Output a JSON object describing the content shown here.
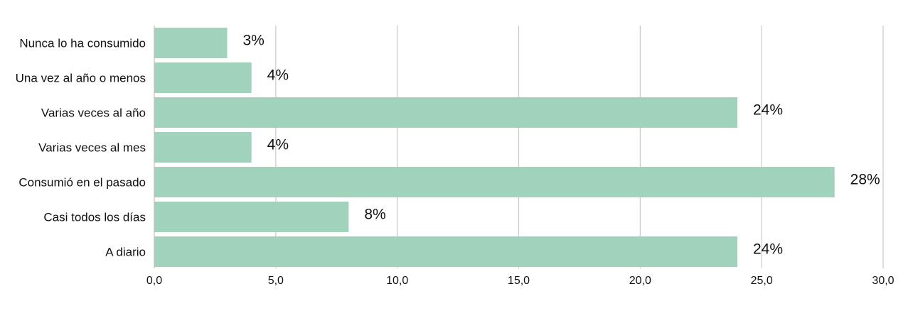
{
  "chart_data": {
    "type": "bar",
    "orientation": "horizontal",
    "title": "",
    "xlabel": "",
    "ylabel": "",
    "xlim": [
      0,
      30
    ],
    "x_ticks": [
      0,
      5,
      10,
      15,
      20,
      25,
      30
    ],
    "x_tick_labels": [
      "0,0",
      "5,0",
      "10,0",
      "15,0",
      "20,0",
      "25,0",
      "30,0"
    ],
    "categories": [
      "Nunca lo ha consumido",
      "Una vez al año o menos",
      "Varias veces al año",
      "Varias veces al mes",
      "Consumió en el pasado",
      "Casi todos los días",
      "A diario"
    ],
    "values": [
      3,
      4,
      24,
      4,
      28,
      8,
      24
    ],
    "data_labels": [
      "3%",
      "4%",
      "24%",
      "4%",
      "28%",
      "8%",
      "24%"
    ],
    "grid": "vertical",
    "legend": "none",
    "colors": {
      "bar": "#a1d2bb",
      "grid": "#c9c9c9",
      "text": "#111111"
    }
  }
}
